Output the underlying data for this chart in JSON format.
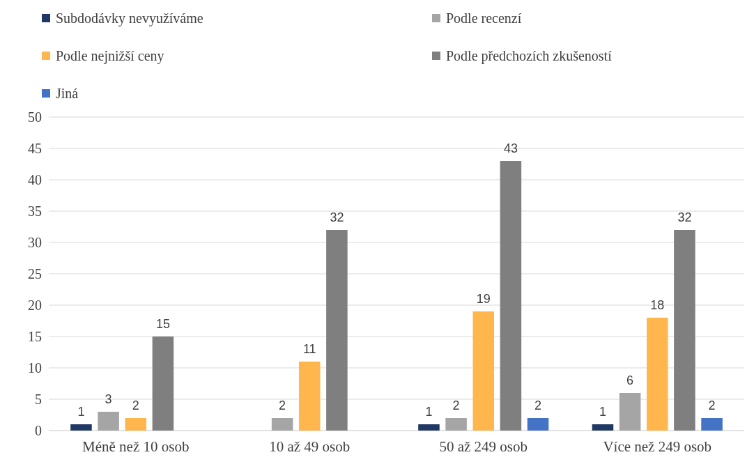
{
  "chart_data": {
    "type": "bar",
    "categories": [
      "Méně než 10 osob",
      "10 až 49 osob",
      "50 až 249 osob",
      "Více než 249 osob"
    ],
    "series": [
      {
        "name": "Subdodávky nevyužíváme",
        "color": "#203864",
        "values": [
          1,
          null,
          1,
          1
        ]
      },
      {
        "name": "Podle recenzí",
        "color": "#a5a5a5",
        "values": [
          3,
          2,
          2,
          6
        ]
      },
      {
        "name": "Podle nejnižší ceny",
        "color": "#ffb74d",
        "values": [
          2,
          11,
          19,
          18
        ]
      },
      {
        "name": "Podle předchozích zkušeností",
        "color": "#7f7f7f",
        "values": [
          15,
          32,
          43,
          32
        ]
      },
      {
        "name": "Jiná",
        "color": "#4472c4",
        "values": [
          null,
          null,
          2,
          2
        ]
      }
    ],
    "ylim": [
      0,
      50
    ],
    "yticks": [
      0,
      5,
      10,
      15,
      20,
      25,
      30,
      35,
      40,
      45,
      50
    ],
    "grid": "y",
    "legend": "top",
    "data_labels": true
  }
}
